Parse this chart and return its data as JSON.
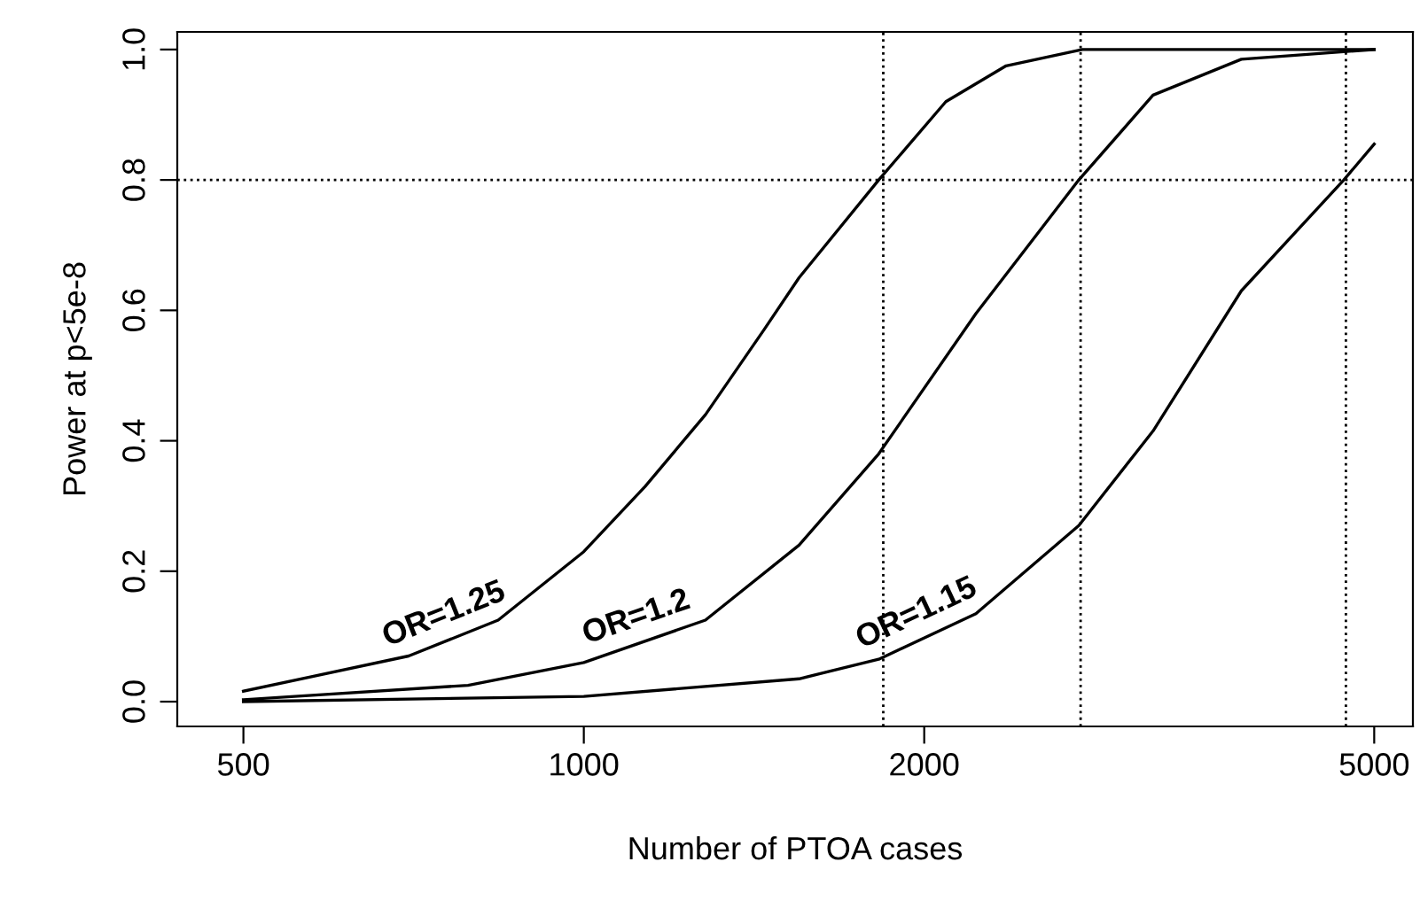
{
  "chart_data": {
    "type": "line",
    "xlabel": "Number of PTOA cases",
    "ylabel": "Power at p<5e-8",
    "log": "x",
    "xlim": [
      437,
      5410
    ],
    "ylim": [
      -0.038,
      1.027
    ],
    "xticks": [
      500,
      1000,
      2000,
      5000
    ],
    "yticks": [
      {
        "value": 0,
        "label": "0.0"
      },
      {
        "value": 0.2,
        "label": "0.2"
      },
      {
        "value": 0.4,
        "label": "0.4"
      },
      {
        "value": 0.6,
        "label": "0.6"
      },
      {
        "value": 0.8,
        "label": "0.8"
      },
      {
        "value": 1,
        "label": "1.0"
      }
    ],
    "grid": false,
    "legend": false,
    "marker": "none",
    "line_style": "solid",
    "series": [
      {
        "name": "OR=1.25",
        "color": "#000000",
        "x": [
          500,
          700,
          840,
          1000,
          1133,
          1281,
          1443,
          1550,
          1823,
          2090,
          2363,
          2760,
          3200,
          4000,
          5000
        ],
        "values": [
          0.016,
          0.07,
          0.125,
          0.23,
          0.33,
          0.44,
          0.57,
          0.65,
          0.8,
          0.92,
          0.975,
          1.0,
          1.0,
          1.0,
          1.0
        ]
      },
      {
        "name": "OR=1.2",
        "color": "#000000",
        "x": [
          500,
          790,
          1000,
          1281,
          1550,
          1823,
          2222,
          2740,
          3187,
          3815,
          5000
        ],
        "values": [
          0.003,
          0.025,
          0.06,
          0.125,
          0.24,
          0.38,
          0.595,
          0.8,
          0.93,
          0.985,
          1.0
        ]
      },
      {
        "name": "OR=1.15",
        "color": "#000000",
        "x": [
          500,
          1000,
          1550,
          1823,
          2222,
          2740,
          3187,
          3815,
          4700,
          5000
        ],
        "values": [
          0.0,
          0.008,
          0.035,
          0.065,
          0.135,
          0.27,
          0.415,
          0.63,
          0.8,
          0.855
        ]
      }
    ],
    "ref_lines": [
      {
        "axis": "x",
        "value": 1840,
        "line_style": "dotted",
        "color": "#000000"
      },
      {
        "axis": "x",
        "value": 2750,
        "line_style": "dotted",
        "color": "#000000"
      },
      {
        "axis": "x",
        "value": 4720,
        "line_style": "dotted",
        "color": "#000000"
      },
      {
        "axis": "y",
        "value": 0.8,
        "line_style": "dotted",
        "color": "#000000"
      }
    ]
  }
}
